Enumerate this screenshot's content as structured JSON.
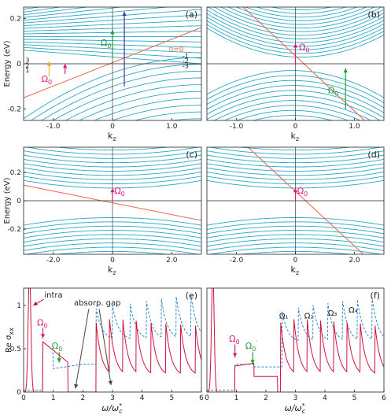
{
  "colors": {
    "landau": "#2aa7c4",
    "band": "#e8654a",
    "axis": "#222222",
    "transition": "#d81b78",
    "transition_prime": "#1f9e3a",
    "interband": "#3b3b9a",
    "intra": "#b8103e",
    "sigma_solid": "#d0113c",
    "sigma_dashed": "#2f86cf",
    "annotation_arrow": "#444444",
    "small_arrow": "#f0a020"
  },
  "figure": {
    "panel_labels": [
      "(a)",
      "(b)",
      "(c)",
      "(d)",
      "(e)",
      "(f)"
    ],
    "ylabel_energy": "Energy (eV)",
    "xlabel_kz": "k",
    "xlabel_kz_sub": "z",
    "ylabel_sigma": "Re σ",
    "ylabel_sigma_sub": "xx",
    "xlabel_omega": "ω/ω",
    "xlabel_omega_sub": "c",
    "xlabel_omega_sup": "*",
    "omega0": "Ω",
    "omega0_sub": "0",
    "omega0_prime_sup": "′",
    "n0_label": "n=0",
    "level_labels_right": [
      "1",
      "2",
      "3"
    ],
    "level_labels_left": [
      "3",
      "2",
      "1"
    ],
    "intra_label": "intra",
    "absorp_gap_label": "absorp. gap",
    "omega_n_labels": [
      "Ω₁",
      "Ω₂",
      "Ω₃",
      "Ω₄"
    ]
  },
  "chart_data": [
    {
      "type": "line",
      "panel": "(a)",
      "title": "",
      "xlabel": "kz",
      "ylabel": "Energy (eV)",
      "xlim": [
        -1.5,
        1.5
      ],
      "ylim": [
        -0.25,
        0.25
      ],
      "xticks": [
        "-1.0",
        "0",
        "1.0"
      ],
      "yticks": [
        "-0.2",
        "0",
        "0.2"
      ],
      "series": [
        {
          "name": "n=0",
          "x": [
            -1.5,
            1.5
          ],
          "y": [
            -0.15,
            0.16
          ]
        }
      ],
      "annotations": [
        "Ω0",
        "Ω0′",
        "n=0",
        "1",
        "2",
        "3",
        "3",
        "2",
        "1"
      ]
    },
    {
      "type": "line",
      "panel": "(b)",
      "title": "",
      "xlabel": "kz",
      "ylabel": "",
      "xlim": [
        -1.5,
        1.5
      ],
      "ylim": [
        -0.25,
        0.25
      ],
      "xticks": [
        "-1.0",
        "0",
        "1.0"
      ],
      "yticks": [],
      "annotations": [
        "Ω0",
        "Ω0′"
      ]
    },
    {
      "type": "line",
      "panel": "(c)",
      "title": "",
      "xlabel": "kz",
      "ylabel": "Energy (eV)",
      "xlim": [
        -3,
        3
      ],
      "ylim": [
        -0.38,
        0.38
      ],
      "xticks": [
        "-2.0",
        "0",
        "2.0"
      ],
      "yticks": [
        "-0.2",
        "0",
        "0.2"
      ],
      "annotations": [
        "Ω0"
      ]
    },
    {
      "type": "line",
      "panel": "(d)",
      "title": "",
      "xlabel": "kz",
      "ylabel": "",
      "xlim": [
        -3,
        3
      ],
      "ylim": [
        -0.38,
        0.38
      ],
      "xticks": [
        "-2.0",
        "0",
        "2.0"
      ],
      "yticks": [],
      "annotations": [
        "Ω0"
      ]
    },
    {
      "type": "line",
      "panel": "(e)",
      "title": "",
      "xlabel": "ω/ωc*",
      "ylabel": "Re σxx",
      "xlim": [
        0,
        6
      ],
      "ylim": [
        0,
        1.2
      ],
      "xticks": [
        "0",
        "1",
        "2",
        "3",
        "4",
        "5",
        "6"
      ],
      "yticks": [
        "0",
        "0.5",
        "1"
      ],
      "annotations": [
        "intra",
        "absorp. gap",
        "Ω0",
        "Ω0′"
      ]
    },
    {
      "type": "line",
      "panel": "(f)",
      "title": "",
      "xlabel": "ω/ωc*",
      "ylabel": "",
      "xlim": [
        0,
        6
      ],
      "ylim": [
        0,
        1.2
      ],
      "xticks": [
        "0",
        "1",
        "2",
        "3",
        "4",
        "5",
        "6"
      ],
      "yticks": [],
      "annotations": [
        "Ω0",
        "Ω0′",
        "Ω₁",
        "Ω₂",
        "Ω₃",
        "Ω₄"
      ]
    }
  ]
}
